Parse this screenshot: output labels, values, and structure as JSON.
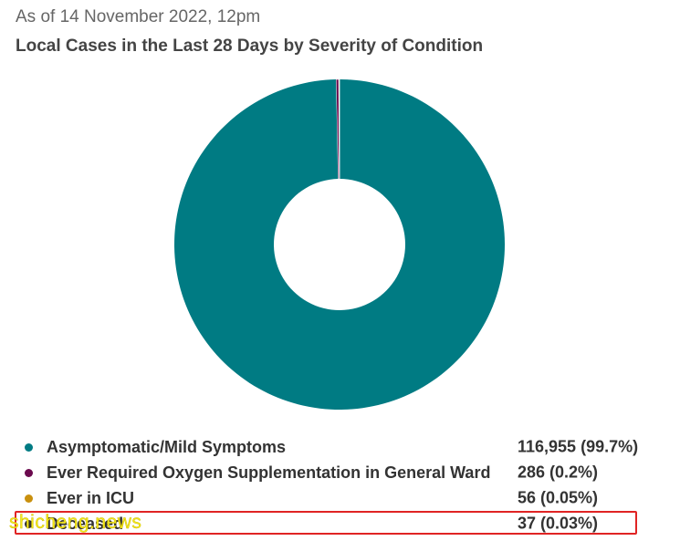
{
  "header": {
    "subtitle": "As of 14 November 2022, 12pm",
    "title": "Local Cases in the Last 28 Days by Severity of Condition"
  },
  "chart_data": {
    "type": "pie",
    "donut": true,
    "title": "Local Cases in the Last 28 Days by Severity of Condition",
    "subtitle": "As of 14 November 2022, 12pm",
    "legend_position": "bottom",
    "slices": [
      {
        "label": "Asymptomatic/Mild Symptoms",
        "value": 116955,
        "percent_text": "116,955 (99.7%)",
        "color": "#007b83"
      },
      {
        "label": "Ever Required Oxygen Supplementation in General Ward",
        "value": 286,
        "percent_text": "286 (0.2%)",
        "color": "#6b0a4e"
      },
      {
        "label": "Ever in ICU",
        "value": 56,
        "percent_text": "56 (0.05%)",
        "color": "#c9900e"
      },
      {
        "label": "Deceased",
        "value": 37,
        "percent_text": "37 (0.03%)",
        "color": "#333333"
      }
    ]
  },
  "watermark": "shicheng.news"
}
